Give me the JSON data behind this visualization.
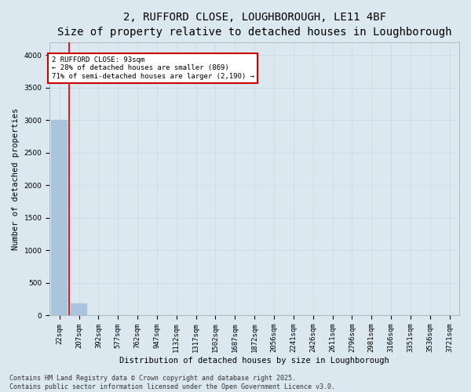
{
  "title_line1": "2, RUFFORD CLOSE, LOUGHBOROUGH, LE11 4BF",
  "title_line2": "Size of property relative to detached houses in Loughborough",
  "xlabel": "Distribution of detached houses by size in Loughborough",
  "ylabel": "Number of detached properties",
  "categories": [
    "22sqm",
    "207sqm",
    "392sqm",
    "577sqm",
    "762sqm",
    "947sqm",
    "1132sqm",
    "1317sqm",
    "1502sqm",
    "1687sqm",
    "1872sqm",
    "2056sqm",
    "2241sqm",
    "2426sqm",
    "2611sqm",
    "2796sqm",
    "2981sqm",
    "3166sqm",
    "3351sqm",
    "3536sqm",
    "3721sqm"
  ],
  "values": [
    3000,
    185,
    0,
    0,
    0,
    0,
    0,
    0,
    0,
    0,
    0,
    0,
    0,
    0,
    0,
    0,
    0,
    0,
    0,
    0,
    0
  ],
  "bar_color": "#aac4dd",
  "bar_edge_color": "#aac4dd",
  "vline_x_index": 0.5,
  "vline_color": "#cc0000",
  "annotation_text": "2 RUFFORD CLOSE: 93sqm\n← 28% of detached houses are smaller (869)\n71% of semi-detached houses are larger (2,190) →",
  "annotation_box_color": "#cc0000",
  "ylim": [
    0,
    4200
  ],
  "yticks": [
    0,
    500,
    1000,
    1500,
    2000,
    2500,
    3000,
    3500,
    4000
  ],
  "grid_color": "#c8d8e8",
  "background_color": "#dce8f0",
  "footnote": "Contains HM Land Registry data © Crown copyright and database right 2025.\nContains public sector information licensed under the Open Government Licence v3.0.",
  "title_fontsize": 10,
  "subtitle_fontsize": 9,
  "label_fontsize": 7.5,
  "tick_fontsize": 6.5,
  "annotation_fontsize": 6.5,
  "footnote_fontsize": 6
}
